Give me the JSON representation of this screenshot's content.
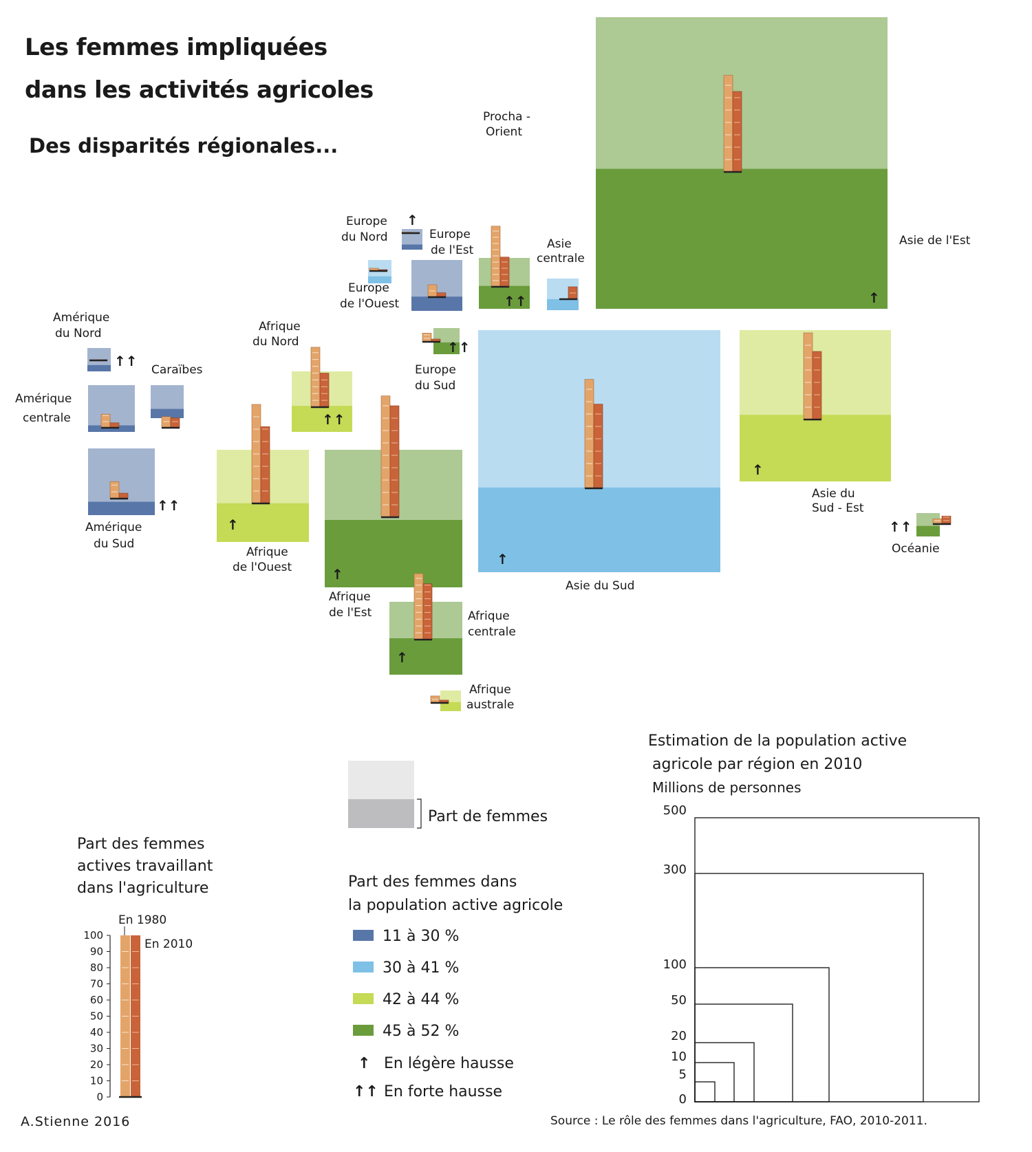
{
  "title_line1": "Les femmes impliquées",
  "title_line2": "dans les activités agricoles",
  "subtitle": "Des disparités régionales...",
  "credit": "A.Stienne 2016",
  "source": "Source : Le rôle des femmes dans l'agriculture, FAO, 2010-2011.",
  "colors": {
    "dark_blue": "#5876a8",
    "light_blue": "#7fc0e6",
    "yellow_green": "#c5da55",
    "dark_green": "#6a9c3c",
    "bar_1980": "#e3a46a",
    "bar_2010": "#c8633a"
  },
  "legend": {
    "share_label": "Part de femmes",
    "class_title_line1": "Part des femmes dans",
    "class_title_line2": "la population active agricole",
    "classes": [
      {
        "label": "11 à 30 %",
        "color": "#5876a8"
      },
      {
        "label": "30 à 41 %",
        "color": "#7fc0e6"
      },
      {
        "label": "42 à 44 %",
        "color": "#c5da55"
      },
      {
        "label": "45 à 52 %",
        "color": "#6a9c3c"
      }
    ],
    "trend_slight_symbol": "↑",
    "trend_slight_label": "En légère hausse",
    "trend_strong_symbol": "↑↑",
    "trend_strong_label": "En forte hausse",
    "bars_title_line1": "Part des femmes",
    "bars_title_line2": "actives travaillant",
    "bars_title_line3": "dans l'agriculture",
    "bars_1980_label": "En 1980",
    "bars_2010_label": "En 2010",
    "bars_ticks": [
      "0",
      "10",
      "20",
      "30",
      "40",
      "50",
      "60",
      "70",
      "80",
      "90",
      "100"
    ],
    "size_title_line1": "Estimation de la population active",
    "size_title_line2": "agricole par région en 2010",
    "size_title_line3": "Millions de personnes",
    "size_ticks": [
      "500",
      "300",
      "100",
      "50",
      "20",
      "10",
      "5",
      "0"
    ]
  },
  "chart_data": {
    "type": "proportional-squares",
    "regions": [
      {
        "name": "Asie de l'Est",
        "pop_millions": 500,
        "women_share": 48,
        "class": 3,
        "f1980": 78,
        "f2010": 65,
        "trend": "↑"
      },
      {
        "name": "Asie du Sud",
        "pop_millions": 380,
        "women_share": 35,
        "class": 1,
        "f1980": 88,
        "f2010": 68,
        "trend": "↑"
      },
      {
        "name": "Asie du Sud-Est",
        "pop_millions": 150,
        "women_share": 44,
        "class": 2,
        "f1980": 70,
        "f2010": 55,
        "trend": "↑"
      },
      {
        "name": "Océanie",
        "pop_millions": 3,
        "women_share": 45,
        "class": 3,
        "f1980": 15,
        "f2010": 23,
        "trend": "↑↑"
      },
      {
        "name": "Proche-Orient",
        "pop_millions": 20,
        "women_share": 45,
        "class": 3,
        "f1980": 98,
        "f2010": 48,
        "trend": "↑↑"
      },
      {
        "name": "Asie centrale",
        "pop_millions": 6,
        "women_share": 35,
        "class": 1,
        "f1980": 0,
        "f2010": 20,
        "trend": ""
      },
      {
        "name": "Europe du Nord",
        "pop_millions": 1,
        "women_share": 25,
        "class": 0,
        "f1980": 3,
        "f2010": 2,
        "trend": "↑"
      },
      {
        "name": "Europe de l'Est",
        "pop_millions": 18,
        "women_share": 28,
        "class": 0,
        "f1980": 20,
        "f2010": 7,
        "trend": ""
      },
      {
        "name": "Europe de l'Ouest",
        "pop_millions": 3,
        "women_share": 30,
        "class": 1,
        "f1980": 8,
        "f2010": 4,
        "trend": ""
      },
      {
        "name": "Europe du Sud",
        "pop_millions": 5,
        "women_share": 45,
        "class": 3,
        "f1980": 25,
        "f2010": 8,
        "trend": "↑↑"
      },
      {
        "name": "Amérique du Nord",
        "pop_millions": 3,
        "women_share": 27,
        "class": 0,
        "f1980": 2,
        "f2010": 2,
        "trend": "↑↑"
      },
      {
        "name": "Caraïbes",
        "pop_millions": 5,
        "women_share": 28,
        "class": 0,
        "f1980": 18,
        "f2010": 16,
        "trend": ""
      },
      {
        "name": "Amérique centrale",
        "pop_millions": 13,
        "women_share": 14,
        "class": 0,
        "f1980": 22,
        "f2010": 8,
        "trend": ""
      },
      {
        "name": "Amérique du Sud",
        "pop_millions": 25,
        "women_share": 20,
        "class": 0,
        "f1980": 25,
        "f2010": 8,
        "trend": "↑↑"
      },
      {
        "name": "Afrique du Nord",
        "pop_millions": 25,
        "women_share": 43,
        "class": 2,
        "f1980": 88,
        "f2010": 50,
        "trend": "↑↑"
      },
      {
        "name": "Afrique de l'Ouest",
        "pop_millions": 50,
        "women_share": 42,
        "class": 2,
        "f1980": 80,
        "f2010": 62,
        "trend": "↑"
      },
      {
        "name": "Afrique de l'Est",
        "pop_millions": 110,
        "women_share": 49,
        "class": 3,
        "f1980": 98,
        "f2010": 90,
        "trend": "↑"
      },
      {
        "name": "Afrique centrale",
        "pop_millions": 30,
        "women_share": 50,
        "class": 3,
        "f1980": 97,
        "f2010": 82,
        "trend": "↑"
      },
      {
        "name": "Afrique australe",
        "pop_millions": 2,
        "women_share": 44,
        "class": 2,
        "f1980": 20,
        "f2010": 8,
        "trend": ""
      }
    ]
  }
}
